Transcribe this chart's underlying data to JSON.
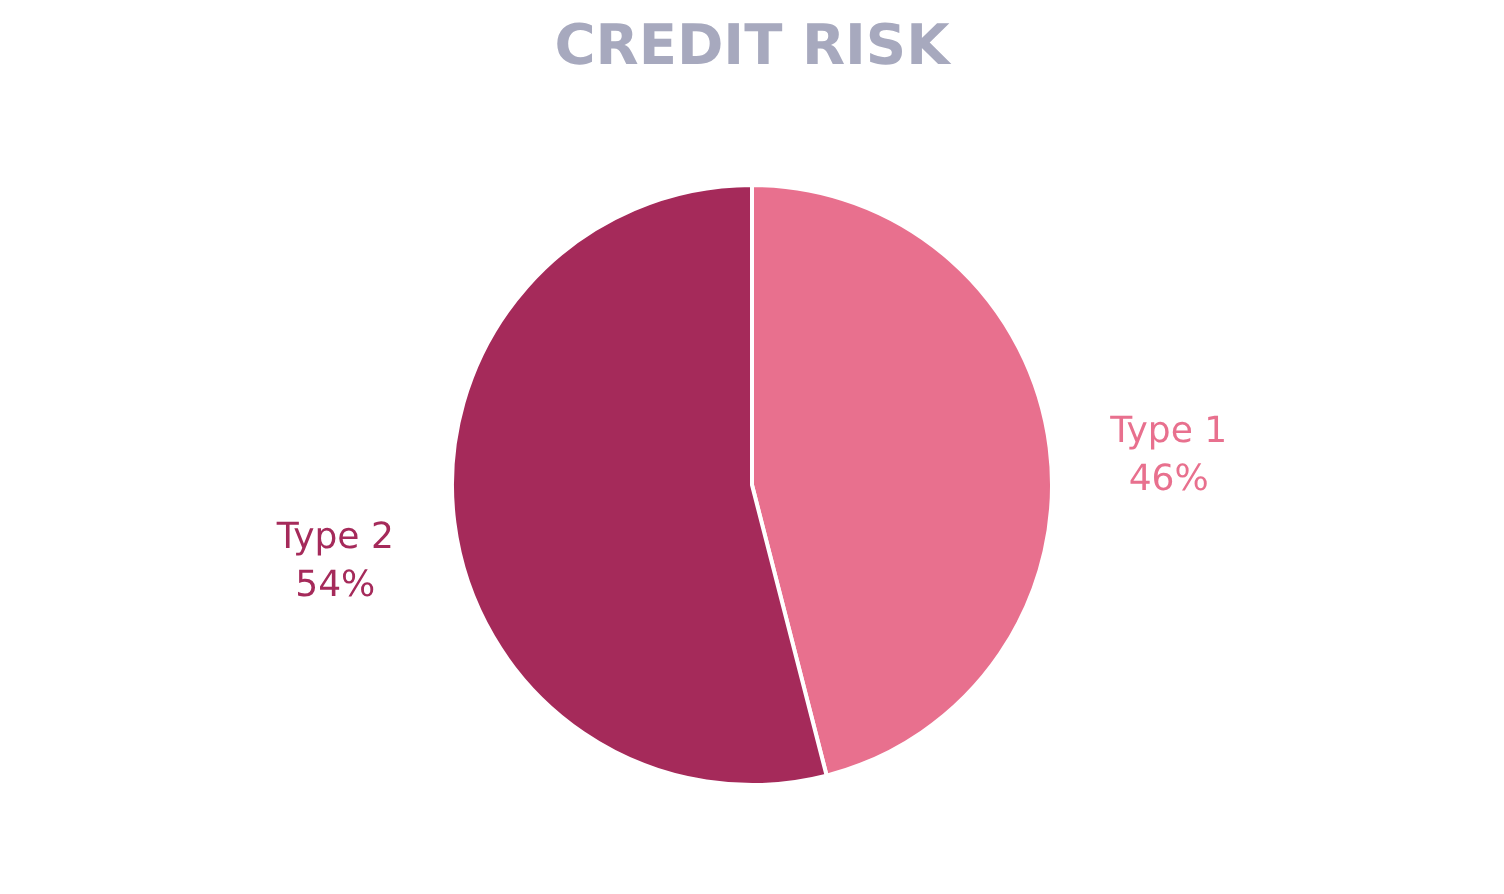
{
  "chart_data": {
    "type": "pie",
    "title": "CREDIT RISK",
    "categories": [
      "Type 1",
      "Type 2"
    ],
    "values": [
      46,
      54
    ],
    "colors": [
      "#e8708e",
      "#a52a5a"
    ],
    "value_labels": [
      "46%",
      "54%"
    ],
    "legend": false
  }
}
